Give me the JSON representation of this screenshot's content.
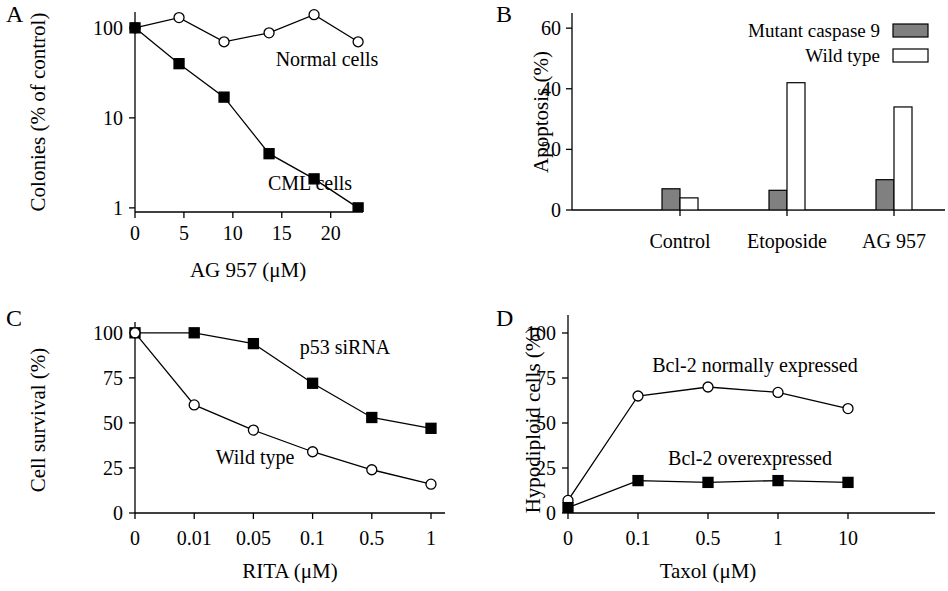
{
  "chart_data": [
    {
      "type": "line",
      "title": "A",
      "x_label": "AG 957 (μM)",
      "y_label": "Colonies (% of control)",
      "log": "y",
      "x": [
        0,
        4.5,
        9.1,
        13.7,
        18.3,
        22.8
      ],
      "xlim": [
        0,
        23.3
      ],
      "xticks": [
        0,
        5,
        10,
        15,
        20
      ],
      "ylim": [
        0.9,
        150
      ],
      "yticks": [
        1,
        10,
        100
      ],
      "series": [
        {
          "name": "Normal cells",
          "color": "#000000",
          "marker": "open-circle",
          "values": [
            100,
            130,
            70,
            88,
            140,
            70
          ]
        },
        {
          "name": "CML cells",
          "color": "#000000",
          "marker": "square",
          "values": [
            100,
            40,
            17,
            4,
            2.1,
            1
          ]
        }
      ]
    },
    {
      "type": "bar",
      "title": "B",
      "y_label": "Apoptosis (%)",
      "categories": [
        "Control",
        "Etoposide",
        "AG 957"
      ],
      "ylim": [
        0,
        65
      ],
      "yticks": [
        0,
        20,
        40,
        60
      ],
      "legend": "top-right",
      "series": [
        {
          "name": "Mutant caspase 9",
          "color": "#808080",
          "values": [
            7,
            6.5,
            10
          ]
        },
        {
          "name": "Wild type",
          "color": "#ffffff",
          "values": [
            4,
            42,
            34
          ]
        }
      ]
    },
    {
      "type": "line",
      "title": "C",
      "x_label": "RITA (μM)",
      "y_label": "Cell survival (%)",
      "categories": [
        "0",
        "0.01",
        "0.05",
        "0.1",
        "0.5",
        "1"
      ],
      "ylim": [
        0,
        106
      ],
      "yticks": [
        0,
        25,
        50,
        75,
        100
      ],
      "series": [
        {
          "name": "p53 siRNA",
          "color": "#000000",
          "marker": "square",
          "values": [
            100,
            100,
            94,
            72,
            53,
            47
          ]
        },
        {
          "name": "Wild type",
          "color": "#000000",
          "marker": "open-circle",
          "values": [
            100,
            60,
            46,
            34,
            24,
            16
          ]
        }
      ]
    },
    {
      "type": "line",
      "title": "D",
      "x_label": "Taxol (μM)",
      "y_label": "Hypodiploid cells (%)",
      "categories": [
        "0",
        "0.1",
        "0.5",
        "1",
        "10"
      ],
      "ylim": [
        0,
        110
      ],
      "yticks": [
        0,
        25,
        50,
        75,
        100
      ],
      "series": [
        {
          "name": "Bcl-2 normally expressed",
          "color": "#000000",
          "marker": "open-circle",
          "values": [
            7,
            65,
            70,
            67,
            58
          ]
        },
        {
          "name": "Bcl-2 overexpressed",
          "color": "#000000",
          "marker": "square",
          "values": [
            3,
            18,
            17,
            18,
            17
          ]
        }
      ]
    }
  ]
}
